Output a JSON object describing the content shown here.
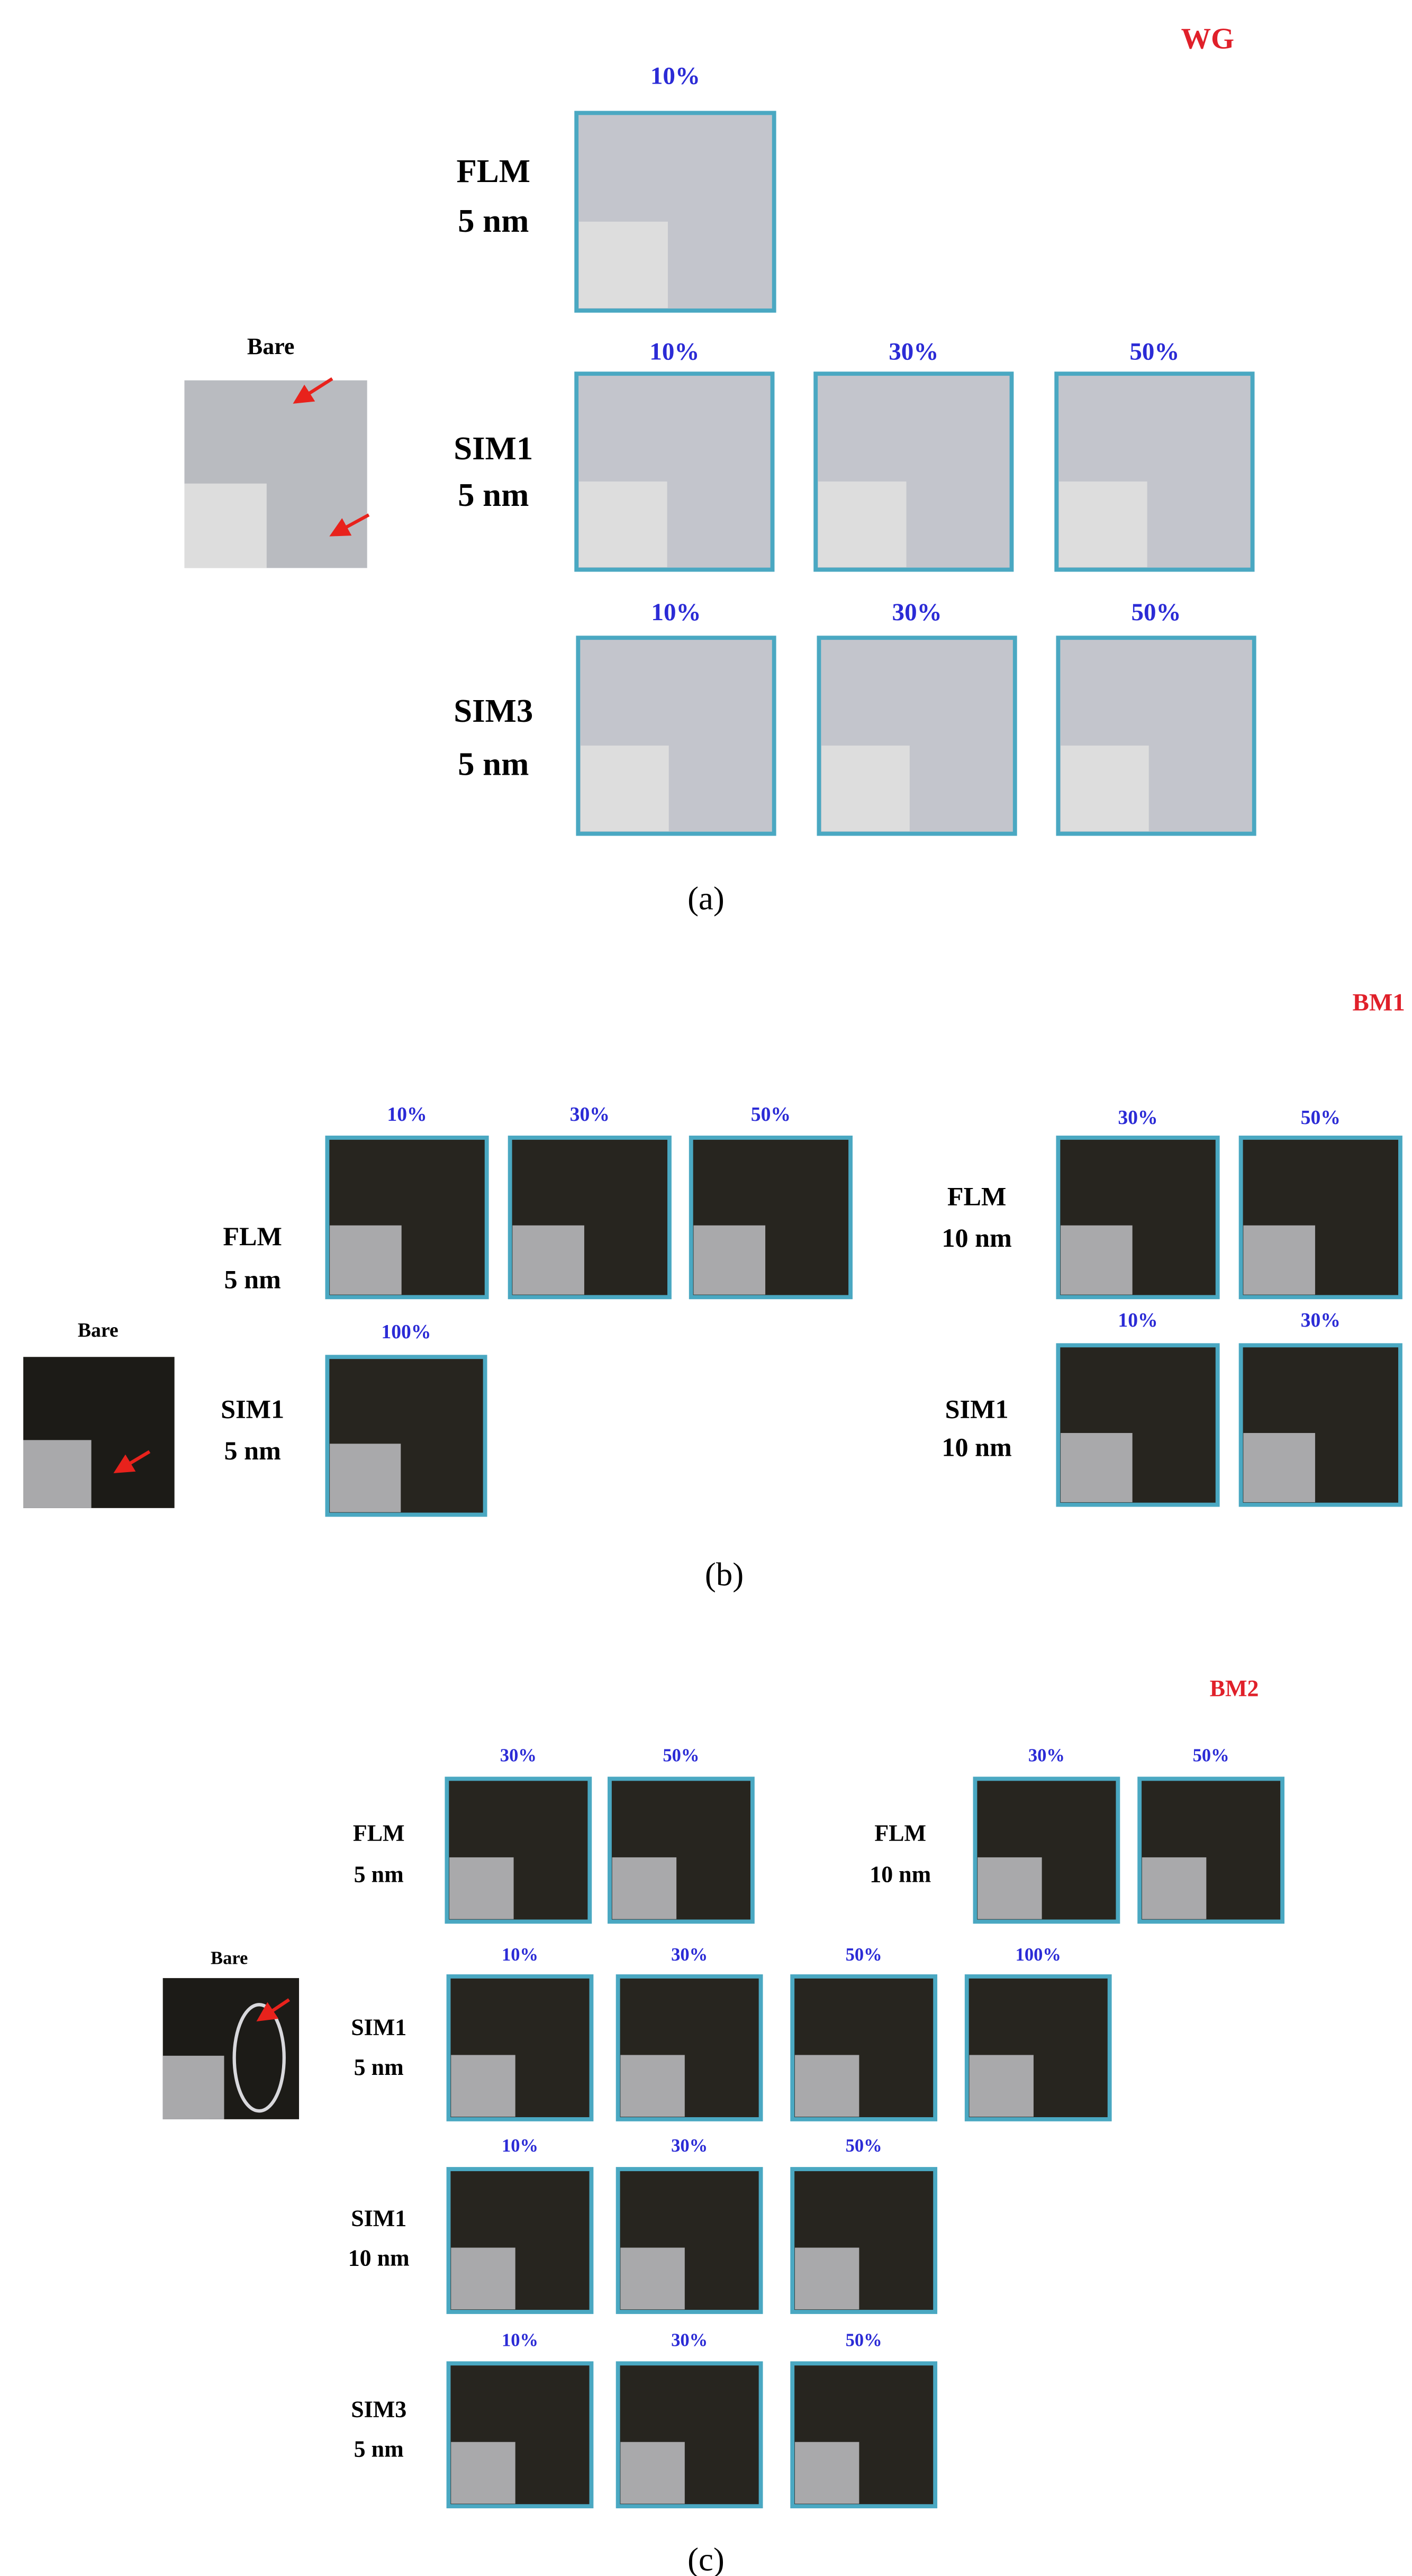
{
  "panels": [
    {
      "tag": "WG",
      "caption": "(a)",
      "bare": "Bare",
      "rows": [
        {
          "label": [
            "FLM",
            "5 nm"
          ],
          "tiles": [
            "10%"
          ]
        },
        {
          "label": [
            "SIM1",
            "5 nm"
          ],
          "tiles": [
            "10%",
            "30%",
            "50%"
          ]
        },
        {
          "label": [
            "SIM3",
            "5 nm"
          ],
          "tiles": [
            "10%",
            "30%",
            "50%"
          ]
        }
      ]
    },
    {
      "tag": "BM1",
      "caption": "(b)",
      "bare": "Bare",
      "rows": [
        {
          "label": [
            "FLM",
            "5 nm"
          ],
          "tiles": [
            "10%",
            "30%",
            "50%"
          ]
        },
        {
          "label": [
            "SIM1",
            "5 nm"
          ],
          "tiles": [
            "100%"
          ]
        },
        {
          "label": [
            "FLM",
            "10 nm"
          ],
          "tiles": [
            "30%",
            "50%"
          ]
        },
        {
          "label": [
            "SIM1",
            "10 nm"
          ],
          "tiles": [
            "10%",
            "30%"
          ]
        }
      ]
    },
    {
      "tag": "BM2",
      "caption": "(c)",
      "bare": "Bare",
      "rows": [
        {
          "label": [
            "FLM",
            "5 nm"
          ],
          "tiles": [
            "30%",
            "50%"
          ]
        },
        {
          "label": [
            "FLM",
            "10 nm"
          ],
          "tiles": [
            "30%",
            "50%"
          ]
        },
        {
          "label": [
            "SIM1",
            "5 nm"
          ],
          "tiles": [
            "10%",
            "30%",
            "50%",
            "100%"
          ]
        },
        {
          "label": [
            "SIM1",
            "10 nm"
          ],
          "tiles": [
            "10%",
            "30%",
            "50%"
          ]
        },
        {
          "label": [
            "SIM3",
            "5 nm"
          ],
          "tiles": [
            "10%",
            "30%",
            "50%"
          ]
        }
      ]
    }
  ]
}
